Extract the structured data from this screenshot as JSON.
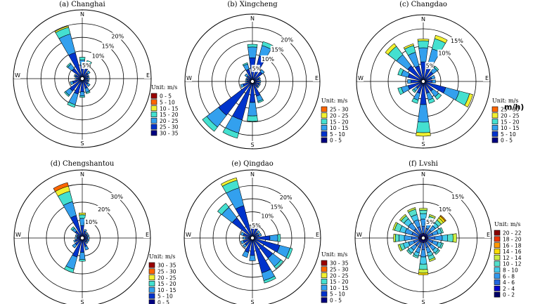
{
  "figure": {
    "artifact_text": "m/h)"
  },
  "scales": {
    "s7": [
      "#000080",
      "#0033cc",
      "#33a0ee",
      "#44e0d0",
      "#f0f030",
      "#ff6600",
      "#990000"
    ],
    "s11": [
      "#000066",
      "#0000cc",
      "#2266dd",
      "#3399ee",
      "#44ccee",
      "#55e0cc",
      "#ccee44",
      "#ffdd00",
      "#ff9900",
      "#ee3300",
      "#880000"
    ]
  },
  "chart_data": [
    {
      "type": "windrose",
      "title": "(a) Changhai",
      "directions": [
        "N",
        "NNE",
        "NE",
        "ENE",
        "E",
        "ESE",
        "SE",
        "SSE",
        "S",
        "SSW",
        "SW",
        "WSW",
        "W",
        "WNW",
        "NW",
        "NNW"
      ],
      "compass": {
        "N": "N",
        "E": "E",
        "S": "S",
        "W": "W"
      },
      "ring_values": [
        5,
        10,
        15,
        20
      ],
      "ring_labels": [
        "5%",
        "10%",
        "15%",
        "20%"
      ],
      "rmax": 25,
      "legend": {
        "title": "Unit: m/s",
        "scale": "s7",
        "bins": [
          "0 - 5",
          "5 - 10",
          "10 - 15",
          "15 - 20",
          "20 - 25",
          "25 - 30",
          "30 - 35"
        ]
      },
      "frequencies": [
        [
          0.8,
          4,
          2,
          1,
          0,
          0,
          0
        ],
        [
          0.8,
          3,
          2,
          1,
          0,
          0,
          0
        ],
        [
          0.6,
          2,
          1,
          0,
          0,
          0,
          0
        ],
        [
          0.6,
          1.5,
          0.5,
          0,
          0,
          0,
          0
        ],
        [
          0.6,
          1.5,
          0.5,
          0,
          0,
          0,
          0
        ],
        [
          0.6,
          1.5,
          0.5,
          0,
          0,
          0,
          0
        ],
        [
          0.6,
          2,
          1,
          0,
          0,
          0,
          0
        ],
        [
          0.7,
          3,
          1.5,
          0.5,
          0,
          0,
          0
        ],
        [
          0.8,
          4,
          1.5,
          0.5,
          0,
          0,
          0
        ],
        [
          0.8,
          5,
          4,
          1,
          0,
          0,
          0
        ],
        [
          0.7,
          5,
          2,
          0.5,
          0,
          0,
          0
        ],
        [
          0.6,
          3,
          1,
          0,
          0,
          0,
          0
        ],
        [
          0.6,
          1.5,
          0.5,
          0,
          0,
          0,
          0
        ],
        [
          0.6,
          2,
          0.5,
          0,
          0,
          0,
          0
        ],
        [
          0.7,
          4,
          2,
          0.5,
          0,
          0,
          0
        ],
        [
          0.8,
          9,
          7,
          2.5,
          0.5,
          0,
          0
        ]
      ]
    },
    {
      "type": "windrose",
      "title": "(b) Xingcheng",
      "directions": [
        "N",
        "NNE",
        "NE",
        "ENE",
        "E",
        "ESE",
        "SE",
        "SSE",
        "S",
        "SSW",
        "SW",
        "WSW",
        "W",
        "WNW",
        "NW",
        "NNW"
      ],
      "compass": {
        "N": "N",
        "E": "E",
        "S": "S",
        "W": "W"
      },
      "ring_values": [
        5,
        10,
        15,
        20
      ],
      "ring_labels": [
        "5%",
        "10%",
        "15%",
        "20%"
      ],
      "rmax": 25,
      "legend": {
        "title": "Unit: m/s",
        "scale": "s7",
        "bins": [
          "25 - 30",
          "20 - 25",
          "15 - 20",
          "10 - 15",
          "5 - 10",
          "0 - 5"
        ]
      },
      "frequencies": [
        [
          0.8,
          8,
          4,
          1,
          0,
          0,
          0
        ],
        [
          0.8,
          9,
          4,
          1.5,
          0,
          0,
          0
        ],
        [
          0.6,
          4,
          1,
          0,
          0,
          0,
          0
        ],
        [
          0.6,
          2,
          0.5,
          0,
          0,
          0,
          0
        ],
        [
          0.6,
          2,
          0.5,
          0,
          0,
          0,
          0
        ],
        [
          0.6,
          2,
          0.5,
          0,
          0,
          0,
          0
        ],
        [
          0.6,
          2,
          0.5,
          0,
          0,
          0,
          0
        ],
        [
          0.7,
          5,
          2,
          0.5,
          0,
          0,
          0
        ],
        [
          0.8,
          7,
          5,
          2,
          0,
          0,
          0
        ],
        [
          0.8,
          14,
          5,
          2,
          0,
          0,
          0
        ],
        [
          0.8,
          15,
          5.5,
          2,
          0,
          0,
          0
        ],
        [
          0.6,
          3,
          1,
          0,
          0,
          0,
          0
        ],
        [
          0.6,
          1.5,
          0.5,
          0,
          0,
          0,
          0
        ],
        [
          0.6,
          1.5,
          0.5,
          0,
          0,
          0,
          0
        ],
        [
          0.6,
          2,
          1,
          0,
          0,
          0,
          0
        ],
        [
          0.7,
          4,
          2,
          0.5,
          0,
          0,
          0
        ]
      ]
    },
    {
      "type": "windrose",
      "title": "(c) Changdao",
      "directions": [
        "N",
        "NNE",
        "NE",
        "ENE",
        "E",
        "ESE",
        "SE",
        "SSE",
        "S",
        "SSW",
        "SW",
        "WSW",
        "W",
        "WNW",
        "NW",
        "NNW"
      ],
      "compass": {
        "N": "N",
        "E": "E",
        "S": "S",
        "W": "W"
      },
      "ring_values": [
        5,
        10,
        15
      ],
      "ring_labels": [
        "5%",
        "10%",
        "15%"
      ],
      "rmax": 19,
      "legend": {
        "title": "Unit: m/s",
        "scale": "s7",
        "bins": [
          "25 - 30",
          "20 - 25",
          "15 - 20",
          "10 - 15",
          "5 - 10",
          "0 - 5"
        ]
      },
      "frequencies": [
        [
          0.6,
          5,
          4,
          2,
          0.5,
          0,
          0
        ],
        [
          0.6,
          5,
          4,
          3,
          1,
          0,
          0
        ],
        [
          0.5,
          3,
          1.5,
          0.5,
          0,
          0,
          0
        ],
        [
          0.5,
          2,
          1,
          0,
          0,
          0,
          0
        ],
        [
          0.5,
          2,
          1,
          0,
          0,
          0,
          0
        ],
        [
          0.6,
          6,
          4,
          3,
          1,
          0,
          0
        ],
        [
          0.5,
          3,
          2,
          1,
          0,
          0,
          0
        ],
        [
          0.5,
          3,
          2,
          1,
          0,
          0,
          0
        ],
        [
          0.6,
          6,
          5,
          3,
          1,
          0,
          0
        ],
        [
          0.5,
          3,
          2,
          1,
          0,
          0,
          0
        ],
        [
          0.5,
          2,
          1,
          0.5,
          0,
          0,
          0
        ],
        [
          0.5,
          4,
          2,
          1,
          0,
          0,
          0
        ],
        [
          0.5,
          3,
          1,
          0,
          0,
          0,
          0
        ],
        [
          0.5,
          4,
          2,
          1,
          0,
          0,
          0
        ],
        [
          0.6,
          5,
          4,
          3,
          1,
          0,
          0
        ],
        [
          0.6,
          4,
          4,
          2,
          0.5,
          0,
          0
        ]
      ]
    },
    {
      "type": "windrose",
      "title": "(d) Chengshantou",
      "directions": [
        "N",
        "NNE",
        "NE",
        "ENE",
        "E",
        "ESE",
        "SE",
        "SSE",
        "S",
        "SSW",
        "SW",
        "WSW",
        "W",
        "WNW",
        "NW",
        "NNW"
      ],
      "compass": {
        "N": "N",
        "E": "E",
        "S": "S",
        "W": "W"
      },
      "ring_values": [
        10,
        20,
        30
      ],
      "ring_labels": [
        "10%",
        "20%",
        "30%"
      ],
      "rmax": 38,
      "legend": {
        "title": "Unit: m/s",
        "scale": "s7",
        "bins": [
          "30 - 35",
          "25 - 30",
          "20 - 25",
          "15 - 20",
          "10 - 15",
          "5 - 10",
          "0 - 5"
        ]
      },
      "frequencies": [
        [
          1,
          6,
          4,
          2,
          1,
          0,
          0
        ],
        [
          1,
          3,
          1,
          0,
          0,
          0,
          0
        ],
        [
          1,
          2,
          1,
          0,
          0,
          0,
          0
        ],
        [
          1,
          2,
          1,
          0,
          0,
          0,
          0
        ],
        [
          1,
          2,
          1,
          0,
          0,
          0,
          0
        ],
        [
          1,
          2,
          1,
          0,
          0,
          0,
          0
        ],
        [
          1,
          2,
          1,
          0,
          0,
          0,
          0
        ],
        [
          1,
          4,
          2,
          0,
          0,
          0,
          0
        ],
        [
          1,
          7,
          4,
          1,
          0,
          0,
          0
        ],
        [
          1,
          10,
          7,
          2,
          0,
          0,
          0
        ],
        [
          1,
          4,
          2,
          0,
          0,
          0,
          0
        ],
        [
          1,
          3,
          1,
          0,
          0,
          0,
          0
        ],
        [
          1,
          2,
          1,
          0,
          0,
          0,
          0
        ],
        [
          1,
          2,
          1,
          0,
          0,
          0,
          0
        ],
        [
          1,
          4,
          2,
          1,
          0,
          0,
          0
        ],
        [
          1,
          12,
          8,
          6,
          3,
          2,
          0
        ]
      ]
    },
    {
      "type": "windrose",
      "title": "(e) Qingdao",
      "directions": [
        "N",
        "NNE",
        "NE",
        "ENE",
        "E",
        "ESE",
        "SE",
        "SSE",
        "S",
        "SSW",
        "SW",
        "WSW",
        "W",
        "WNW",
        "NW",
        "NNW"
      ],
      "compass": {
        "N": "N",
        "E": "E",
        "S": "S",
        "W": "W"
      },
      "ring_values": [
        5,
        10,
        15,
        20
      ],
      "ring_labels": [
        "5%",
        "10%",
        "15%",
        "20%"
      ],
      "rmax": 26,
      "legend": {
        "title": "Unit: m/s",
        "scale": "s7",
        "bins": [
          "30 - 35",
          "25 - 30",
          "20 - 25",
          "15 - 20",
          "10 - 15",
          "5 - 10",
          "0 - 5"
        ]
      },
      "frequencies": [
        [
          0.8,
          3,
          1,
          0,
          0,
          0,
          0
        ],
        [
          0.8,
          3,
          1,
          0,
          0,
          0,
          0
        ],
        [
          0.6,
          2,
          1,
          0,
          0,
          0,
          0
        ],
        [
          0.6,
          2,
          1,
          0,
          0,
          0,
          0
        ],
        [
          0.7,
          6,
          3,
          1,
          0,
          0,
          0
        ],
        [
          0.8,
          10,
          4,
          1,
          0,
          0,
          0
        ],
        [
          0.7,
          9,
          4,
          1,
          0,
          0,
          0
        ],
        [
          0.8,
          13,
          3,
          1,
          0,
          0,
          0
        ],
        [
          0.7,
          6,
          2,
          0,
          0,
          0,
          0
        ],
        [
          0.7,
          5,
          2,
          0,
          0,
          0,
          0
        ],
        [
          0.6,
          3,
          1,
          0,
          0,
          0,
          0
        ],
        [
          0.6,
          3,
          1,
          0,
          0,
          0,
          0
        ],
        [
          0.6,
          2,
          1,
          0,
          0,
          0,
          0
        ],
        [
          0.6,
          3,
          1,
          0,
          0,
          0,
          0
        ],
        [
          0.7,
          9,
          5,
          2,
          0,
          0,
          0
        ],
        [
          0.8,
          12,
          7,
          3,
          1,
          0,
          0
        ]
      ]
    },
    {
      "type": "windrose",
      "title": "(f) Lvshi",
      "directions": [
        "N",
        "NNE",
        "NE",
        "ENE",
        "E",
        "ESE",
        "SE",
        "SSE",
        "S",
        "SSW",
        "SW",
        "WSW",
        "W",
        "WNW",
        "NW",
        "NNW"
      ],
      "compass": {
        "N": "N",
        "E": "E",
        "S": "S",
        "W": "W"
      },
      "ring_values": [
        5,
        10,
        15
      ],
      "ring_labels": [
        "5%",
        "10%",
        "15%"
      ],
      "rmax": 19,
      "legend": {
        "title": "Unit: m/s",
        "scale": "s11",
        "bins": [
          "20 - 22",
          "18 - 20",
          "16 - 18",
          "14 - 16",
          "12 - 14",
          "10 - 12",
          "8 - 10",
          "6 - 8",
          "4 - 6",
          "2 - 4",
          "0 - 2"
        ]
      },
      "frequencies": [
        [
          0.3,
          1,
          2,
          2,
          1.5,
          1,
          0.5,
          0,
          0,
          0,
          0
        ],
        [
          0.3,
          1,
          1.5,
          1.5,
          1,
          1,
          0.5,
          0,
          0,
          0,
          0
        ],
        [
          0.3,
          1,
          1.5,
          1.5,
          1,
          1,
          0.8,
          0.6,
          0.3,
          0,
          0
        ],
        [
          0.3,
          1,
          1.5,
          1.5,
          1,
          0.5,
          0,
          0,
          0,
          0,
          0
        ],
        [
          0.3,
          1,
          2,
          2,
          1.5,
          1.5,
          1,
          0,
          0,
          0,
          0
        ],
        [
          0.3,
          1,
          1.5,
          1.5,
          1,
          0.5,
          0,
          0,
          0,
          0,
          0
        ],
        [
          0.3,
          1,
          1.5,
          1.5,
          1,
          0.5,
          0,
          0,
          0,
          0,
          0
        ],
        [
          0.3,
          1,
          1.5,
          1.5,
          1,
          1,
          0.5,
          0,
          0,
          0,
          0
        ],
        [
          0.3,
          1,
          2,
          2,
          2,
          1.5,
          1,
          0.5,
          0,
          0,
          0
        ],
        [
          0.3,
          1,
          1.5,
          1.5,
          1,
          0.5,
          0,
          0,
          0,
          0,
          0
        ],
        [
          0.3,
          1,
          1.5,
          1.5,
          1,
          0.5,
          0,
          0,
          0,
          0,
          0
        ],
        [
          0.3,
          1,
          1.5,
          1.5,
          1.5,
          1,
          0.5,
          0,
          0,
          0,
          0
        ],
        [
          0.3,
          1,
          2,
          2,
          1.5,
          1,
          0.5,
          0,
          0,
          0,
          0
        ],
        [
          0.3,
          1,
          2,
          2,
          1.5,
          1.5,
          0.5,
          0,
          0,
          0,
          0
        ],
        [
          0.3,
          1,
          2,
          2,
          1.5,
          1,
          0.5,
          0,
          0,
          0,
          0
        ],
        [
          0.3,
          1,
          2,
          2,
          1.5,
          1.5,
          0.5,
          0,
          0,
          0,
          0
        ]
      ]
    }
  ]
}
